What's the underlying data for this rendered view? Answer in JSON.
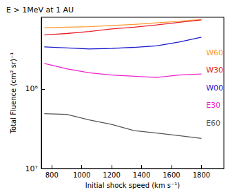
{
  "chart_data": {
    "type": "line",
    "title": "E > 1MeV at 1 AU",
    "x_label": "Initial shock speed (km s⁻¹)",
    "y_label": "Total Fluence (cm² sr)⁻¹",
    "x": [
      750,
      900,
      1050,
      1200,
      1350,
      1500,
      1650,
      1800
    ],
    "series": [
      {
        "name": "W60",
        "color": "#ff9933",
        "values": [
          590000000,
          600000000,
          610000000,
          630000000,
          650000000,
          680000000,
          710000000,
          750000000
        ]
      },
      {
        "name": "W30",
        "color": "#e8202a",
        "values": [
          480000000,
          500000000,
          530000000,
          570000000,
          600000000,
          640000000,
          690000000,
          740000000
        ]
      },
      {
        "name": "W00",
        "color": "#1a1acc",
        "values": [
          340000000,
          330000000,
          320000000,
          325000000,
          335000000,
          350000000,
          390000000,
          450000000
        ]
      },
      {
        "name": "E30",
        "color": "#ee22cc",
        "values": [
          210000000,
          180000000,
          160000000,
          150000000,
          145000000,
          140000000,
          150000000,
          155000000
        ]
      },
      {
        "name": "E60",
        "color": "#555555",
        "values": [
          49000000,
          48000000,
          41000000,
          36000000,
          30000000,
          28000000,
          26000000,
          24000000
        ]
      }
    ],
    "xlim": [
      730,
      1950
    ],
    "xticks": [
      800,
      1000,
      1200,
      1400,
      1600,
      1800
    ],
    "ylim": [
      10000000,
      800000000
    ],
    "yticks": [
      {
        "value": 10000000,
        "label": "10⁷"
      },
      {
        "value": 100000000,
        "label": "10⁸"
      }
    ],
    "log": "y",
    "grid": false,
    "legend": "right"
  }
}
